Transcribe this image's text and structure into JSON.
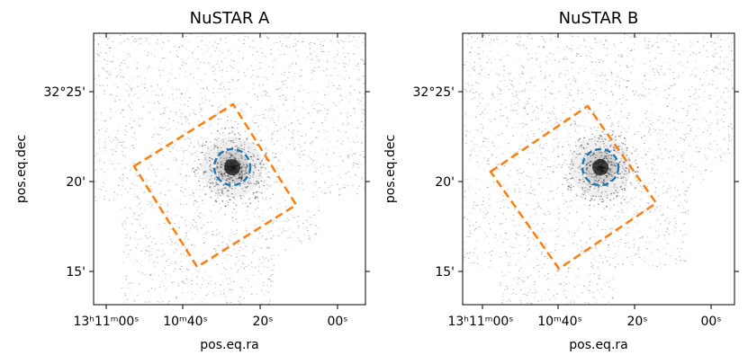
{
  "panels": [
    {
      "title": "NuSTAR A",
      "xlabel": "pos.eq.ra",
      "ylabel": "pos.eq.dec",
      "ra_ticks": [
        "13ʰ11ᵐ00ˢ",
        "10ᵐ40ˢ",
        "20ˢ",
        "00ˢ"
      ],
      "dec_ticks": [
        "32°25'",
        "20'",
        "15'"
      ]
    },
    {
      "title": "NuSTAR B",
      "xlabel": "pos.eq.ra",
      "ylabel": "pos.eq.dec",
      "ra_ticks": [
        "13ʰ11ᵐ00ˢ",
        "10ᵐ40ˢ",
        "20ˢ",
        "00ˢ"
      ],
      "dec_ticks": [
        "32°25'",
        "20'",
        "15'"
      ]
    }
  ],
  "colors": {
    "source_region": "#1f77b4",
    "background_region": "#ff7f0e",
    "image_gray": "#555555",
    "frame": "#000000"
  }
}
